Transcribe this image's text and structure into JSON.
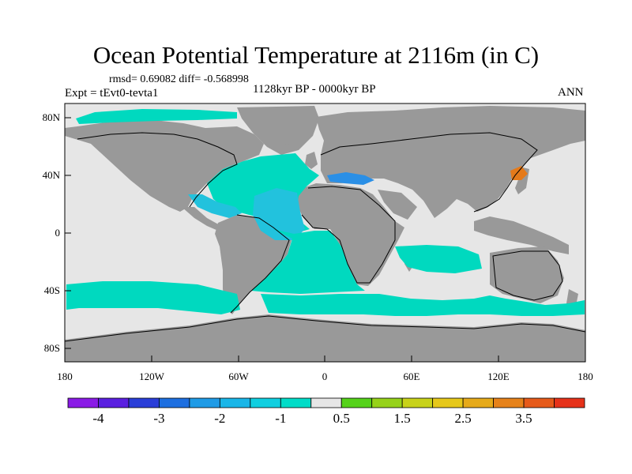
{
  "title": "Ocean Potential Temperature at 2116m (in C)",
  "stats_text": "rmsd= 0.69082 diff= -0.568998",
  "experiment_text": "Expt = tEvt0-tevta1",
  "period_text": "1128kyr BP - 0000kyr BP",
  "season_text": "ANN",
  "colors": {
    "land": "#999999",
    "near_zero": "#e6e6e6",
    "cool_1": "#00d9bf",
    "cool_2": "#22c2dd",
    "cool_3": "#2a8fe6",
    "warm_3": "#e57a1a"
  },
  "map": {
    "lat_labels": [
      "80N",
      "40N",
      "0",
      "40S",
      "80S"
    ],
    "lon_labels": [
      "180",
      "120W",
      "60W",
      "0",
      "60E",
      "120E",
      "180"
    ]
  },
  "colorbar": {
    "colors": [
      "#8a1be6",
      "#5a1fe0",
      "#2a3ed8",
      "#1d6fe0",
      "#1f9be6",
      "#19b6e8",
      "#10cfe0",
      "#00dcc8",
      "#e6e6e6",
      "#55d21a",
      "#96d21a",
      "#c8d21a",
      "#e6c81a",
      "#e6aa1a",
      "#e6821a",
      "#e65a1a",
      "#e6321a"
    ],
    "labels": [
      "-4",
      "-3",
      "-2",
      "-1",
      "0.5",
      "1.5",
      "2.5",
      "3.5"
    ]
  }
}
